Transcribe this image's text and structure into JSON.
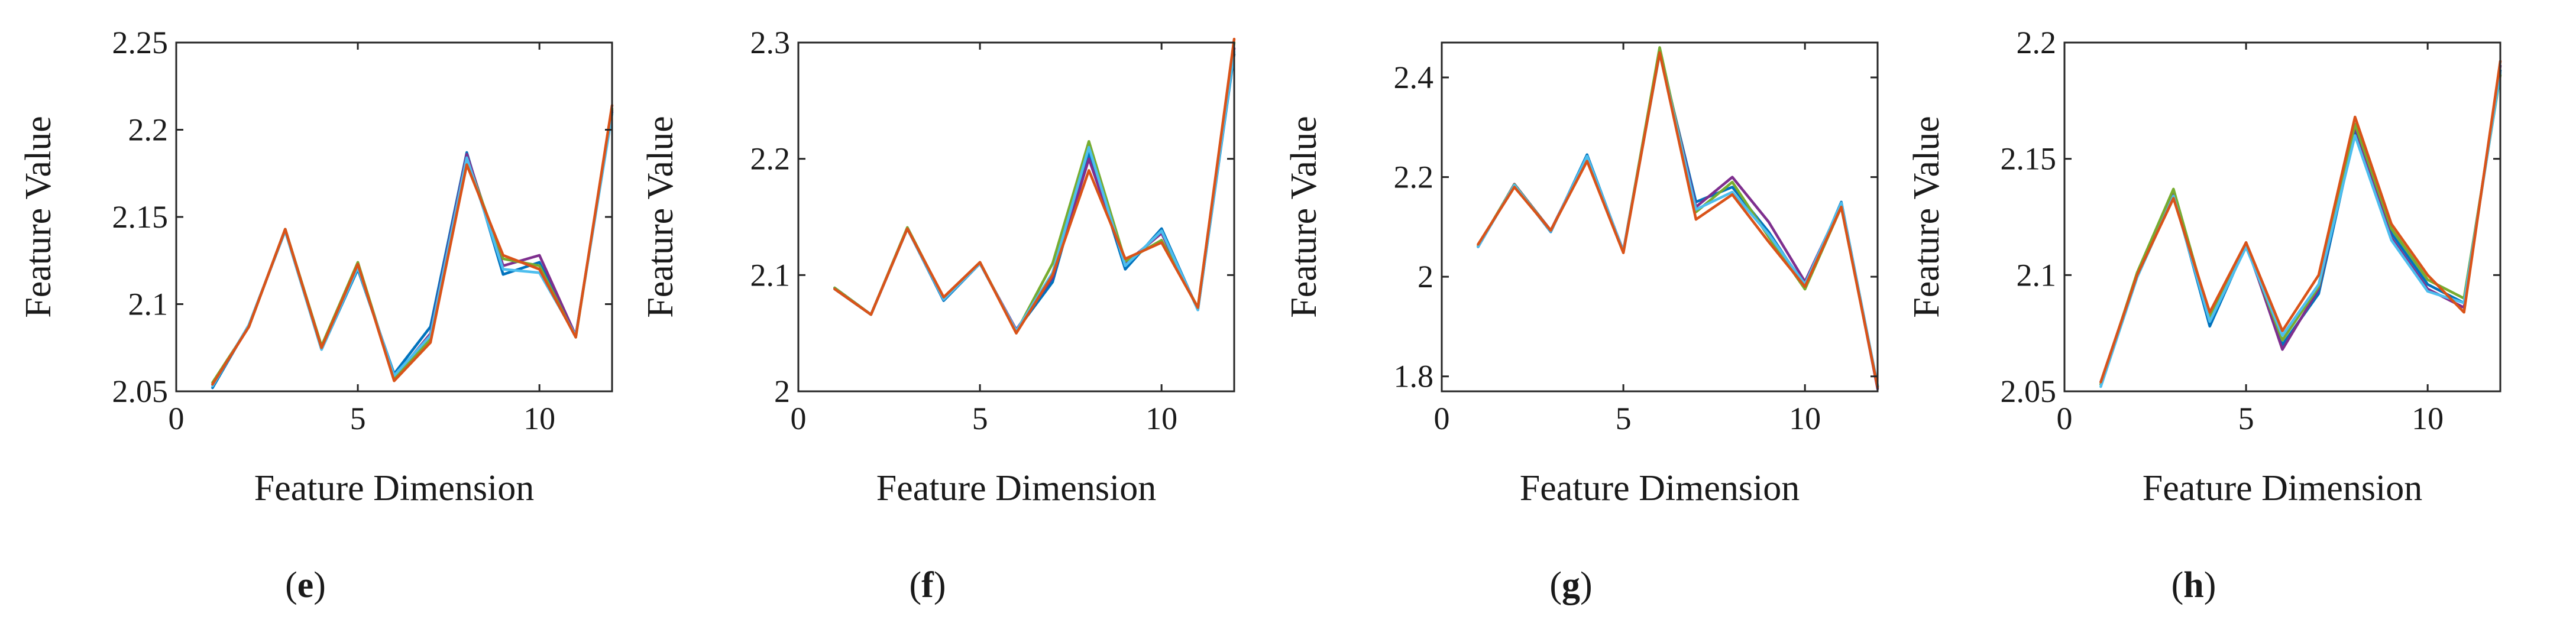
{
  "chart_data": [
    {
      "type": "line",
      "panel_label": "e",
      "xlabel": "Feature Dimension",
      "ylabel": "Feature Value",
      "xlim": [
        0,
        12
      ],
      "ylim": [
        2.05,
        2.25
      ],
      "xticks": [
        0,
        5,
        10
      ],
      "xtick_labels": [
        "0",
        "5",
        "10"
      ],
      "yticks": [
        2.05,
        2.1,
        2.15,
        2.2,
        2.25
      ],
      "ytick_labels": [
        "2.05",
        "2.1",
        "2.15",
        "2.2",
        "2.25"
      ],
      "x": [
        1,
        2,
        3,
        4,
        5,
        6,
        7,
        8,
        9,
        10,
        11,
        12
      ],
      "series": [
        {
          "name": "blue",
          "color": "#0072BD",
          "values": [
            2.052,
            2.088,
            2.142,
            2.074,
            2.12,
            2.06,
            2.087,
            2.187,
            2.117,
            2.124,
            2.082,
            2.21
          ]
        },
        {
          "name": "purple",
          "color": "#7E2F8E",
          "values": [
            2.054,
            2.087,
            2.143,
            2.075,
            2.123,
            2.058,
            2.083,
            2.186,
            2.122,
            2.128,
            2.082,
            2.211
          ]
        },
        {
          "name": "green",
          "color": "#77AC30",
          "values": [
            2.055,
            2.087,
            2.143,
            2.076,
            2.124,
            2.057,
            2.08,
            2.183,
            2.126,
            2.122,
            2.081,
            2.212
          ]
        },
        {
          "name": "cyan",
          "color": "#4DBEEE",
          "values": [
            2.053,
            2.088,
            2.142,
            2.074,
            2.121,
            2.059,
            2.082,
            2.184,
            2.12,
            2.118,
            2.082,
            2.209
          ]
        },
        {
          "name": "orange",
          "color": "#D95319",
          "values": [
            2.054,
            2.087,
            2.143,
            2.075,
            2.123,
            2.056,
            2.078,
            2.18,
            2.128,
            2.12,
            2.081,
            2.214
          ]
        }
      ]
    },
    {
      "type": "line",
      "panel_label": "f",
      "xlabel": "Feature Dimension",
      "ylabel": "Feature Value",
      "xlim": [
        0,
        12
      ],
      "ylim": [
        2.0,
        2.3
      ],
      "xticks": [
        0,
        5,
        10
      ],
      "xtick_labels": [
        "0",
        "5",
        "10"
      ],
      "yticks": [
        2.0,
        2.1,
        2.2,
        2.3
      ],
      "ytick_labels": [
        "2",
        "2.1",
        "2.2",
        "2.3"
      ],
      "x": [
        1,
        2,
        3,
        4,
        5,
        6,
        7,
        8,
        9,
        10,
        11,
        12
      ],
      "series": [
        {
          "name": "blue",
          "color": "#0072BD",
          "values": [
            2.089,
            2.066,
            2.14,
            2.078,
            2.11,
            2.052,
            2.094,
            2.205,
            2.105,
            2.14,
            2.07,
            2.29
          ]
        },
        {
          "name": "purple",
          "color": "#7E2F8E",
          "values": [
            2.088,
            2.066,
            2.14,
            2.079,
            2.11,
            2.053,
            2.098,
            2.2,
            2.11,
            2.136,
            2.071,
            2.295
          ]
        },
        {
          "name": "green",
          "color": "#77AC30",
          "values": [
            2.089,
            2.066,
            2.141,
            2.08,
            2.111,
            2.051,
            2.11,
            2.215,
            2.112,
            2.13,
            2.072,
            2.3
          ]
        },
        {
          "name": "cyan",
          "color": "#4DBEEE",
          "values": [
            2.088,
            2.066,
            2.14,
            2.079,
            2.11,
            2.052,
            2.102,
            2.21,
            2.108,
            2.138,
            2.07,
            2.292
          ]
        },
        {
          "name": "orange",
          "color": "#D95319",
          "values": [
            2.088,
            2.066,
            2.14,
            2.081,
            2.111,
            2.05,
            2.1,
            2.19,
            2.114,
            2.128,
            2.072,
            2.303
          ]
        }
      ]
    },
    {
      "type": "line",
      "panel_label": "g",
      "xlabel": "Feature Dimension",
      "ylabel": "Feature Value",
      "xlim": [
        0,
        12
      ],
      "ylim": [
        1.77,
        2.47
      ],
      "xticks": [
        0,
        5,
        10
      ],
      "xtick_labels": [
        "0",
        "5",
        "10"
      ],
      "yticks": [
        1.8,
        2.0,
        2.2,
        2.4
      ],
      "ytick_labels": [
        "1.8",
        "2",
        "2.2",
        "2.4"
      ],
      "x": [
        1,
        2,
        3,
        4,
        5,
        6,
        7,
        8,
        9,
        10,
        11,
        12
      ],
      "series": [
        {
          "name": "blue",
          "color": "#0072BD",
          "values": [
            2.06,
            2.185,
            2.09,
            2.245,
            2.05,
            2.45,
            2.15,
            2.18,
            2.09,
            1.98,
            2.15,
            1.78
          ]
        },
        {
          "name": "purple",
          "color": "#7E2F8E",
          "values": [
            2.06,
            2.186,
            2.093,
            2.24,
            2.052,
            2.455,
            2.14,
            2.2,
            2.11,
            1.99,
            2.145,
            1.775
          ]
        },
        {
          "name": "green",
          "color": "#77AC30",
          "values": [
            2.062,
            2.185,
            2.092,
            2.238,
            2.05,
            2.46,
            2.13,
            2.19,
            2.08,
            1.975,
            2.14,
            1.78
          ]
        },
        {
          "name": "cyan",
          "color": "#4DBEEE",
          "values": [
            2.06,
            2.184,
            2.091,
            2.242,
            2.051,
            2.448,
            2.135,
            2.17,
            2.085,
            1.985,
            2.148,
            1.782
          ]
        },
        {
          "name": "orange",
          "color": "#D95319",
          "values": [
            2.065,
            2.18,
            2.093,
            2.232,
            2.048,
            2.45,
            2.115,
            2.165,
            2.07,
            1.98,
            2.14,
            1.778
          ]
        }
      ]
    },
    {
      "type": "line",
      "panel_label": "h",
      "xlabel": "Feature Dimension",
      "ylabel": "Feature Value",
      "xlim": [
        0,
        12
      ],
      "ylim": [
        2.05,
        2.2
      ],
      "xticks": [
        0,
        5,
        10
      ],
      "xtick_labels": [
        "0",
        "5",
        "10"
      ],
      "yticks": [
        2.05,
        2.1,
        2.15,
        2.2
      ],
      "ytick_labels": [
        "2.05",
        "2.1",
        "2.15",
        "2.2"
      ],
      "x": [
        1,
        2,
        3,
        4,
        5,
        6,
        7,
        8,
        9,
        10,
        11,
        12
      ],
      "series": [
        {
          "name": "blue",
          "color": "#0072BD",
          "values": [
            2.053,
            2.1,
            2.135,
            2.078,
            2.113,
            2.07,
            2.092,
            2.162,
            2.118,
            2.096,
            2.088,
            2.188
          ]
        },
        {
          "name": "purple",
          "color": "#7E2F8E",
          "values": [
            2.054,
            2.1,
            2.136,
            2.08,
            2.114,
            2.068,
            2.094,
            2.164,
            2.116,
            2.094,
            2.086,
            2.19
          ]
        },
        {
          "name": "green",
          "color": "#77AC30",
          "values": [
            2.053,
            2.101,
            2.137,
            2.082,
            2.113,
            2.072,
            2.095,
            2.165,
            2.12,
            2.098,
            2.09,
            2.186
          ]
        },
        {
          "name": "cyan",
          "color": "#4DBEEE",
          "values": [
            2.052,
            2.099,
            2.134,
            2.08,
            2.112,
            2.074,
            2.096,
            2.16,
            2.115,
            2.093,
            2.088,
            2.187
          ]
        },
        {
          "name": "orange",
          "color": "#D95319",
          "values": [
            2.054,
            2.1,
            2.133,
            2.084,
            2.114,
            2.076,
            2.1,
            2.168,
            2.122,
            2.1,
            2.084,
            2.192
          ]
        }
      ]
    }
  ]
}
